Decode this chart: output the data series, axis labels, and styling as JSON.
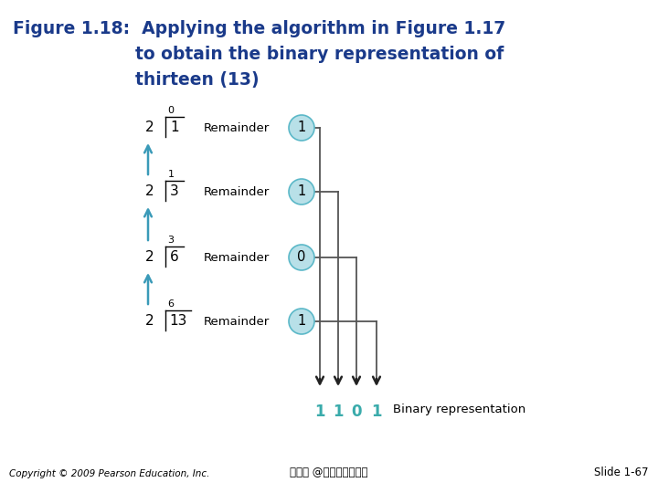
{
  "title_color": "#1a3a8a",
  "bg_color": "#ffffff",
  "divisions": [
    {
      "quotient": 0,
      "divisor": "2",
      "dividend": "1",
      "remainder": 1
    },
    {
      "quotient": 1,
      "divisor": "2",
      "dividend": "3",
      "remainder": 1
    },
    {
      "quotient": 3,
      "divisor": "2",
      "dividend": "6",
      "remainder": 0
    },
    {
      "quotient": 6,
      "divisor": "2",
      "dividend": "13",
      "remainder": 1
    }
  ],
  "circle_face": "#b8e0e8",
  "circle_edge": "#5bb8c8",
  "binary_digits": [
    "1",
    "1",
    "0",
    "1"
  ],
  "binary_color": "#3aabab",
  "binary_label": "Binary representation",
  "copyright": "Copyright © 2009 Pearson Education, Inc.",
  "author": "蔡文能 @交通大學資工系",
  "slide": "Slide 1-67",
  "up_arrow_color": "#3a9ab8",
  "line_color": "#555555",
  "down_arrow_color": "#222222",
  "rem_text_color": "#000000"
}
